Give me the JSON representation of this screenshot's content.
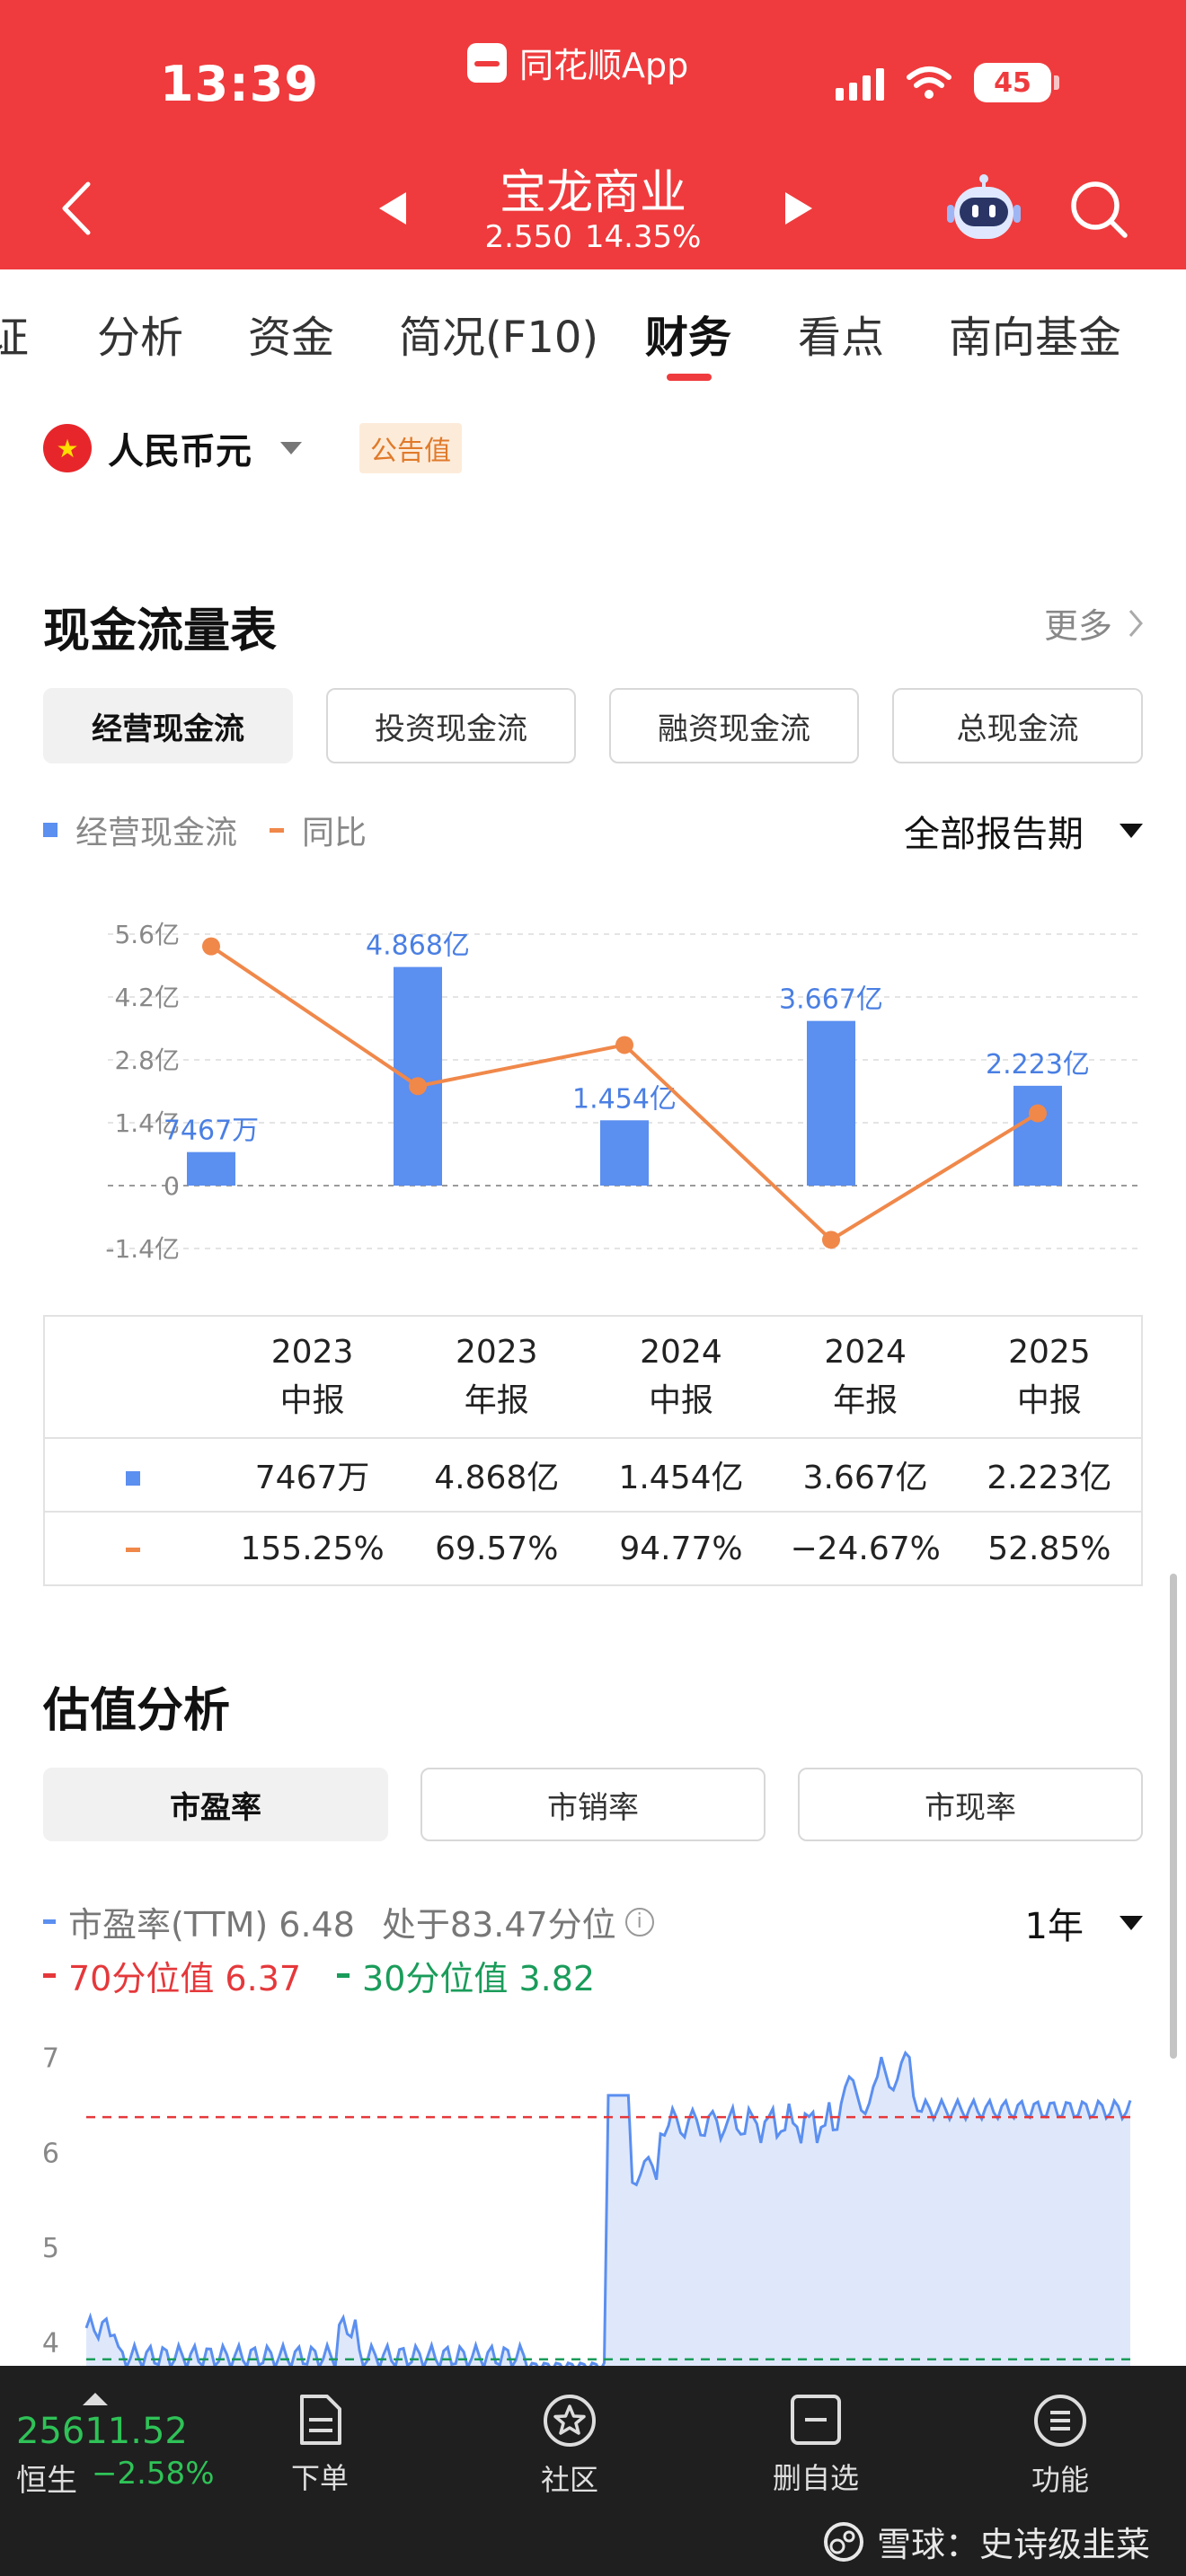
{
  "status_bar": {
    "time": "13:39",
    "app_name": "同花顺App",
    "battery": "45"
  },
  "header": {
    "stock_name": "宝龙商业",
    "price": "2.550",
    "change_pct": "14.35%"
  },
  "tabs": [
    {
      "label": "证"
    },
    {
      "label": "分析"
    },
    {
      "label": "资金"
    },
    {
      "label": "简况(F10)"
    },
    {
      "label": "财务"
    },
    {
      "label": "看点"
    },
    {
      "label": "南向基金"
    }
  ],
  "currency": {
    "label": "人民币元",
    "badge": "公告值"
  },
  "cashflow": {
    "title": "现金流量表",
    "more": "更多",
    "buttons": [
      "经营现金流",
      "投资现金流",
      "融资现金流",
      "总现金流"
    ],
    "legend_bar": "经营现金流",
    "legend_line": "同比",
    "period_select": "全部报告期"
  },
  "chart_data": [
    {
      "type": "bar",
      "categories": [
        "2023中报",
        "2023年报",
        "2024中报",
        "2024年报",
        "2025中报"
      ],
      "series": [
        {
          "name": "经营现金流",
          "type": "bar",
          "values": [
            0.7467,
            4.868,
            1.454,
            3.667,
            2.223
          ],
          "labels": [
            "7467万",
            "4.868亿",
            "1.454亿",
            "3.667亿",
            "2.223亿"
          ],
          "color": "#5b8ff0"
        },
        {
          "name": "同比",
          "type": "line",
          "values": [
            155.25,
            69.57,
            94.77,
            -24.67,
            52.85
          ],
          "color": "#f0884a"
        }
      ],
      "y_ticks": [
        "5.6亿",
        "4.2亿",
        "2.8亿",
        "1.4亿",
        "0",
        "-1.4亿"
      ],
      "ylim": [
        -1.4,
        5.6
      ]
    },
    {
      "type": "area",
      "series": [
        {
          "name": "市盈率(TTM)",
          "color": "#5b8ff0"
        }
      ],
      "y_ticks": [
        "7",
        "6",
        "5",
        "4"
      ],
      "ylim": [
        3.6,
        7.1
      ],
      "reference_lines": [
        {
          "name": "70分位值",
          "value": 6.37,
          "color": "#e5383b"
        },
        {
          "name": "30分位值",
          "value": 3.82,
          "color": "#1a9c5a"
        }
      ]
    }
  ],
  "cashflow_table": {
    "headers": [
      {
        "year": "2023",
        "period": "中报"
      },
      {
        "year": "2023",
        "period": "年报"
      },
      {
        "year": "2024",
        "period": "中报"
      },
      {
        "year": "2024",
        "period": "年报"
      },
      {
        "year": "2025",
        "period": "中报"
      }
    ],
    "values": [
      "7467万",
      "4.868亿",
      "1.454亿",
      "3.667亿",
      "2.223亿"
    ],
    "yoy": [
      "155.25%",
      "69.57%",
      "94.77%",
      "−24.67%",
      "52.85%"
    ]
  },
  "valuation": {
    "title": "估值分析",
    "buttons": [
      "市盈率",
      "市销率",
      "市现率"
    ],
    "pe_label": "市盈率(TTM) 6.48",
    "percentile_label": "处于83.47分位",
    "p70_label": "70分位值 6.37",
    "p30_label": "30分位值 3.82",
    "range": "1年"
  },
  "bottom_bar": {
    "index_value": "25611.52",
    "index_name": "恒生",
    "index_change": "−2.58%",
    "nav": [
      "下单",
      "社区",
      "删自选",
      "功能"
    ],
    "watermark": "雪球：史诗级韭菜"
  }
}
